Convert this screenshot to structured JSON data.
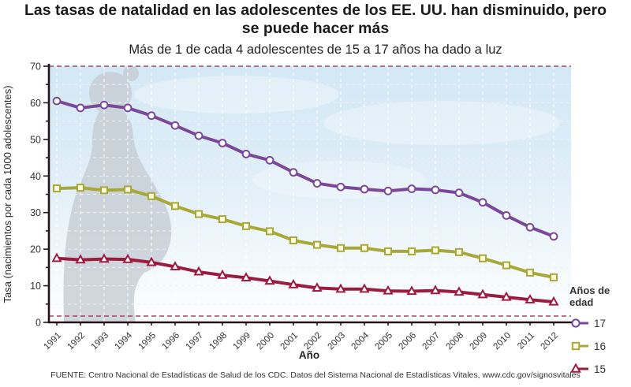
{
  "header": {
    "title": "Las tasas de natalidad en las adolescentes de los EE. UU. han disminuido, pero se puede hacer más",
    "subtitle": "Más de 1 de cada 4 adolescentes de 15 a 17 años ha dado a luz"
  },
  "chart_data": {
    "type": "line",
    "title": "Las tasas de natalidad en las adolescentes de los EE. UU. han disminuido, pero se puede hacer más",
    "subtitle": "Más de 1 de cada 4 adolescentes de 15 a 17 años ha dado a luz",
    "xlabel": "Año",
    "ylabel": "Tasa (nacimientos por cada 1000 adolescentes)",
    "legend_title": "Años de edad",
    "legend_position": "right",
    "grid": true,
    "ylim": [
      0,
      70
    ],
    "ytick_step": 10,
    "x": [
      1991,
      1992,
      1993,
      1994,
      1995,
      1996,
      1997,
      1998,
      1999,
      2000,
      2001,
      2002,
      2003,
      2004,
      2005,
      2006,
      2007,
      2008,
      2009,
      2010,
      2011,
      2012
    ],
    "series": [
      {
        "name": "17",
        "marker": "circle",
        "color": "#7B4899",
        "values": [
          60.5,
          58.6,
          59.4,
          58.6,
          56.5,
          53.8,
          51.0,
          49.0,
          46.0,
          44.3,
          41.0,
          38.0,
          37.0,
          36.4,
          35.9,
          36.5,
          36.2,
          35.4,
          32.8,
          29.2,
          26.0,
          23.5
        ]
      },
      {
        "name": "16",
        "marker": "square",
        "color": "#A8A839",
        "values": [
          36.6,
          36.8,
          36.1,
          36.3,
          34.5,
          31.8,
          29.6,
          28.2,
          26.3,
          24.9,
          22.4,
          21.2,
          20.3,
          20.3,
          19.4,
          19.4,
          19.7,
          19.2,
          17.5,
          15.6,
          13.6,
          12.3
        ]
      },
      {
        "name": "15",
        "marker": "triangle",
        "color": "#9C1C40",
        "values": [
          17.5,
          17.1,
          17.3,
          17.2,
          16.4,
          15.2,
          13.8,
          12.9,
          12.2,
          11.3,
          10.3,
          9.4,
          9.1,
          9.1,
          8.6,
          8.5,
          8.7,
          8.3,
          7.6,
          6.9,
          6.2,
          5.6
        ]
      }
    ],
    "colors": {
      "plot_bg_top": "#D3E8F5",
      "plot_bg_bottom": "#FDFEFF",
      "silhouette": "#C8CFD6",
      "grid": "#FFFFFF",
      "frame_dashed": "#A04A63",
      "axis": "#231419"
    }
  },
  "footer": {
    "source": "FUENTE: Centro Nacional de Estadísticas de Salud de los CDC. Datos del Sistema Nacional de Estadísticas Vitales, www.cdc.gov/signosvitales"
  }
}
